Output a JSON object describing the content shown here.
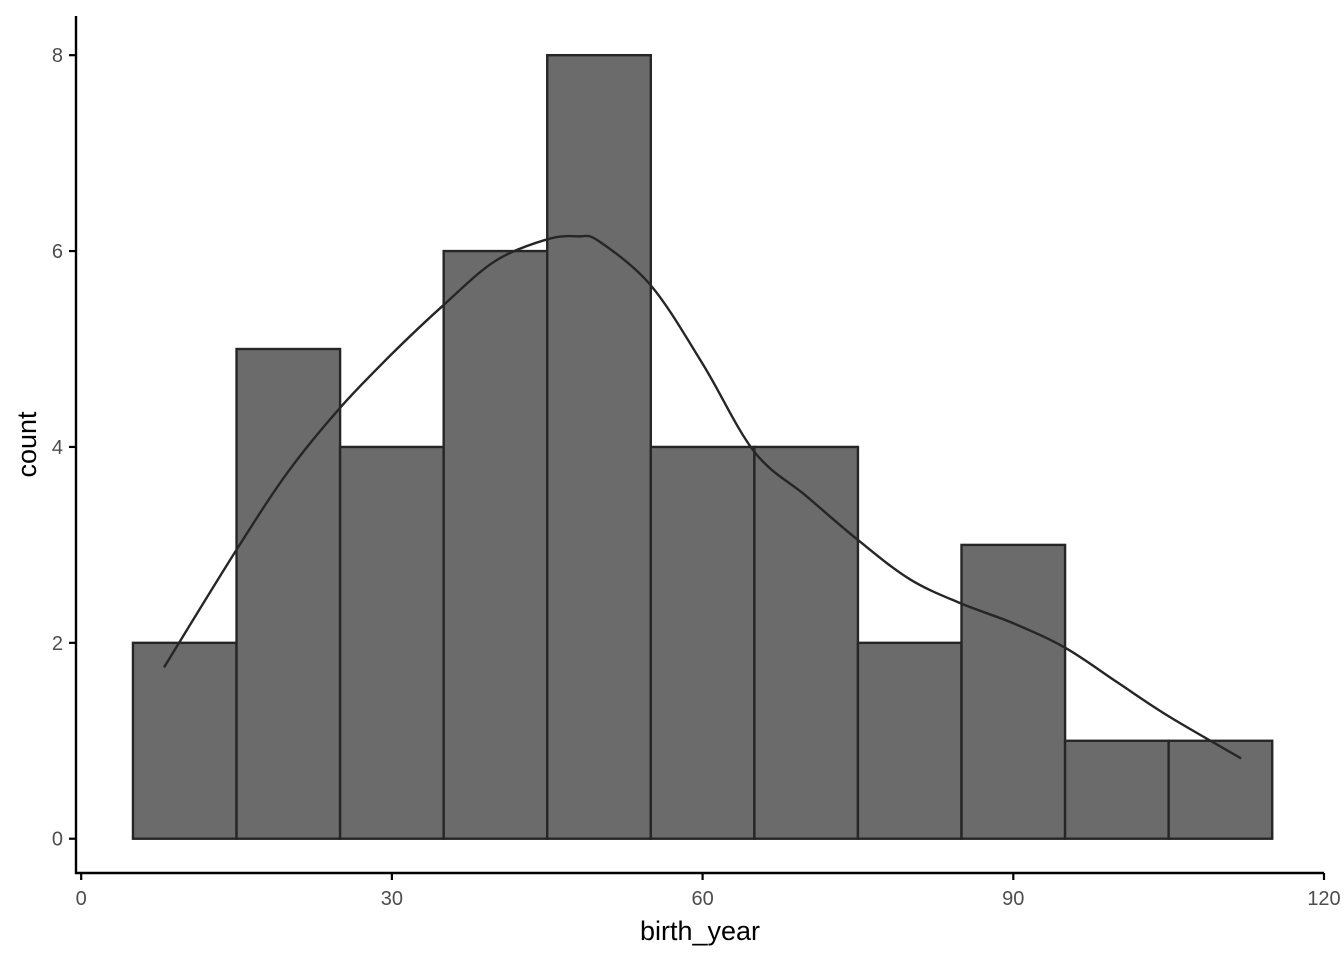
{
  "chart_data": {
    "type": "bar",
    "subtype": "histogram-with-density",
    "title": "",
    "xlabel": "birth_year",
    "ylabel": "count",
    "xlim": [
      -0.5,
      120.0
    ],
    "ylim": [
      -0.35,
      8.4
    ],
    "x_ticks": [
      0,
      30,
      60,
      90,
      120
    ],
    "y_ticks": [
      0,
      2,
      4,
      6,
      8
    ],
    "bin_width": 10,
    "bins": [
      {
        "start": 5,
        "end": 15,
        "count": 2
      },
      {
        "start": 15,
        "end": 25,
        "count": 5
      },
      {
        "start": 25,
        "end": 35,
        "count": 4
      },
      {
        "start": 35,
        "end": 45,
        "count": 6
      },
      {
        "start": 45,
        "end": 55,
        "count": 8
      },
      {
        "start": 55,
        "end": 65,
        "count": 4
      },
      {
        "start": 65,
        "end": 75,
        "count": 4
      },
      {
        "start": 75,
        "end": 85,
        "count": 2
      },
      {
        "start": 85,
        "end": 95,
        "count": 3
      },
      {
        "start": 95,
        "end": 105,
        "count": 1
      },
      {
        "start": 105,
        "end": 115,
        "count": 1
      }
    ],
    "density_curve": {
      "x": [
        8,
        15,
        20,
        25,
        30,
        35,
        40,
        45,
        48,
        50,
        55,
        60,
        65,
        70,
        75,
        80,
        85,
        90,
        95,
        100,
        105,
        112
      ],
      "y": [
        1.75,
        2.95,
        3.75,
        4.4,
        4.95,
        5.45,
        5.9,
        6.12,
        6.15,
        6.1,
        5.65,
        4.85,
        3.95,
        3.5,
        3.05,
        2.65,
        2.4,
        2.2,
        1.95,
        1.6,
        1.25,
        0.82
      ]
    },
    "grid": false,
    "legend": "none",
    "colors": {
      "bar_fill": "#6b6b6b",
      "bar_stroke": "#262626",
      "curve": "#262626",
      "axis": "#000000",
      "tick_label": "#4d4d4d"
    }
  }
}
